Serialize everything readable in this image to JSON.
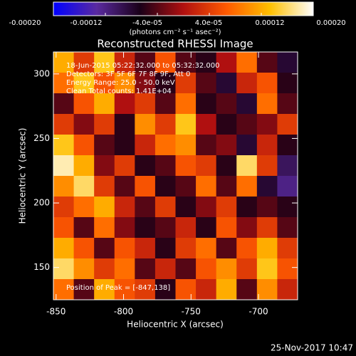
{
  "chart_data": {
    "type": "heatmap",
    "title": "Reconstructed RHESSI Image",
    "x_label": "Heliocentric X (arcsec)",
    "y_label": "Heliocentric Y (arcsec)",
    "colorbar_label": "(photons cm⁻² s⁻¹ asec⁻²)",
    "colormap": [
      "#0000ff",
      "#5a2aa0",
      "#1a0018",
      "#b01010",
      "#ff5a00",
      "#ffc000",
      "#ffffff"
    ],
    "zlim": [
      -0.0002,
      0.0002
    ],
    "zticks": [
      {
        "value": -0.0002,
        "label": "-0.00020"
      },
      {
        "value": -0.00012,
        "label": "-0.00012"
      },
      {
        "value": -4e-05,
        "label": "-4.0e-05"
      },
      {
        "value": 4e-05,
        "label": "4.0e-05"
      },
      {
        "value": 0.00012,
        "label": "0.00012"
      },
      {
        "value": 0.0002,
        "label": "0.00020"
      }
    ],
    "xlim": [
      -852,
      -671
    ],
    "ylim": [
      125,
      317
    ],
    "xticks": [
      -850,
      -800,
      -750,
      -700
    ],
    "yticks": [
      150,
      200,
      250,
      300
    ],
    "annotations": [
      "18-Jun-2015 05:22:32.000 to 05:32:32.000",
      "Detectors: 3F 5F 6F 7F 8F 9F, Att 0",
      "Energy Range: 25.0 - 50.0 keV",
      "Clean     Total counts: 1.41E+04"
    ],
    "peak_label": "Position of Peak = [-847,138]",
    "timestamp": "25-Nov-2017 10:47",
    "values": [
      [
        0.00012,
        4e-05,
        0.00014,
        2e-05,
        -4e-05,
        6e-05,
        -4e-05,
        -6e-05,
        0,
        8e-05,
        -4e-05,
        -8e-05
      ],
      [
        8e-05,
        0.00014,
        6e-05,
        0.0001,
        -2e-05,
        -6e-05,
        4e-05,
        -4e-05,
        -8e-05,
        2e-05,
        6e-05,
        -6e-05
      ],
      [
        -4e-05,
        6e-05,
        0.00012,
        0,
        4e-05,
        -4e-05,
        8e-05,
        -6e-05,
        -4e-05,
        -8e-05,
        8e-05,
        -4e-05
      ],
      [
        4e-05,
        -2e-05,
        4e-05,
        -6e-05,
        0.0001,
        4e-05,
        0.00014,
        0,
        -6e-05,
        -4e-05,
        -2e-05,
        4e-05
      ],
      [
        0.00014,
        6e-05,
        -4e-05,
        -6e-05,
        2e-05,
        8e-05,
        0.0001,
        -4e-05,
        -2e-05,
        -8e-05,
        2e-05,
        -6e-05
      ],
      [
        0.00018,
        0.00012,
        -2e-05,
        4e-05,
        -6e-05,
        -4e-05,
        6e-05,
        4e-05,
        -6e-05,
        0.00016,
        4e-05,
        -0.0001
      ],
      [
        0.0001,
        0.00016,
        4e-05,
        -4e-05,
        6e-05,
        -6e-05,
        -4e-05,
        8e-05,
        -4e-05,
        8e-05,
        -8e-05,
        -0.00012
      ],
      [
        4e-05,
        8e-05,
        0.00012,
        2e-05,
        -4e-05,
        4e-05,
        -6e-05,
        -2e-05,
        4e-05,
        -6e-05,
        -4e-05,
        -6e-05
      ],
      [
        6e-05,
        -4e-05,
        8e-05,
        -2e-05,
        -6e-05,
        -4e-05,
        2e-05,
        -6e-05,
        6e-05,
        -2e-05,
        4e-05,
        -4e-05
      ],
      [
        0.00012,
        6e-05,
        -4e-05,
        6e-05,
        2e-05,
        -6e-05,
        4e-05,
        8e-05,
        -4e-05,
        6e-05,
        0.00012,
        4e-05
      ],
      [
        0.00016,
        0.0001,
        4e-05,
        8e-05,
        -4e-05,
        2e-05,
        -4e-05,
        6e-05,
        0.0001,
        4e-05,
        0.00014,
        6e-05
      ],
      [
        8e-05,
        -4e-05,
        0.00012,
        6e-05,
        4e-05,
        -6e-05,
        6e-05,
        2e-05,
        0.00012,
        -4e-05,
        0.0001,
        2e-05
      ]
    ]
  }
}
